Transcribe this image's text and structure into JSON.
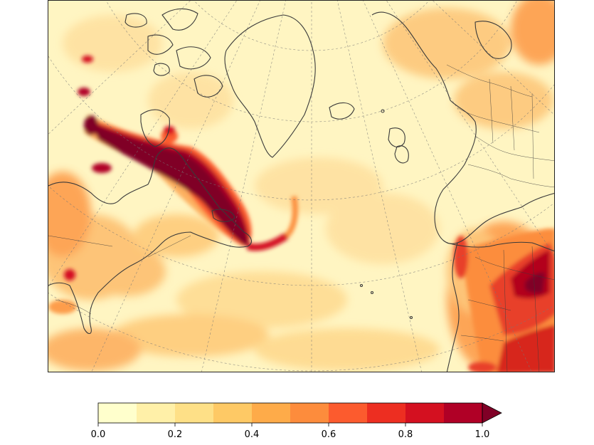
{
  "map": {
    "projection": "north-polar-stereographic",
    "background_color": "#fff5c2",
    "coastline_color": "#3a3a3a",
    "graticule_color": "#777777",
    "field": "aerosol-plume-concentration"
  },
  "colorbar": {
    "min": 0.0,
    "max": 1.0,
    "extend": "max",
    "levels": [
      0.0,
      0.1,
      0.2,
      0.3,
      0.4,
      0.5,
      0.6,
      0.7,
      0.8,
      0.9,
      1.0
    ],
    "colors": [
      "#ffffcc",
      "#fff0a8",
      "#fee087",
      "#fec965",
      "#feab49",
      "#fd8c3c",
      "#fc5b2e",
      "#ed2e21",
      "#d41020",
      "#b00026"
    ],
    "extend_color": "#800026",
    "ticks": [
      {
        "value": 0.0,
        "label": "0.0"
      },
      {
        "value": 0.2,
        "label": "0.2"
      },
      {
        "value": 0.4,
        "label": "0.4"
      },
      {
        "value": 0.6,
        "label": "0.6"
      },
      {
        "value": 0.8,
        "label": "0.8"
      },
      {
        "value": 1.0,
        "label": "1.0"
      }
    ]
  }
}
